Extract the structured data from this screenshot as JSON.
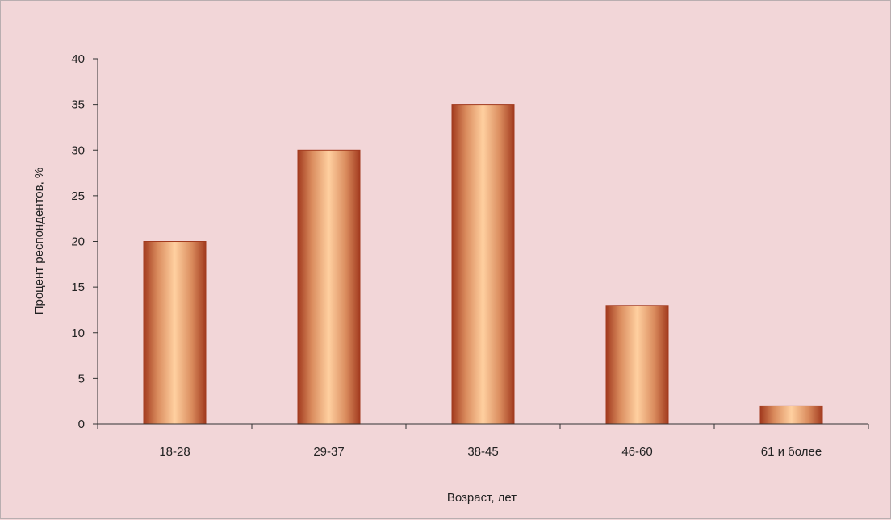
{
  "chart_data": {
    "type": "bar",
    "categories": [
      "18-28",
      "29-37",
      "38-45",
      "46-60",
      "61 и более"
    ],
    "values": [
      20,
      30,
      35,
      13,
      2
    ],
    "xlabel": "Возраст, лет",
    "ylabel": "Процент  респондентов, %",
    "ylim": [
      0,
      40
    ],
    "yticks": [
      0,
      5,
      10,
      15,
      20,
      25,
      30,
      35,
      40
    ],
    "grid": false,
    "legend": "none",
    "colors": {
      "background": "#f2d6d8",
      "bar_edge": "#a23a1e",
      "bar_center": "#ffd0a0",
      "axis": "#333333"
    }
  }
}
